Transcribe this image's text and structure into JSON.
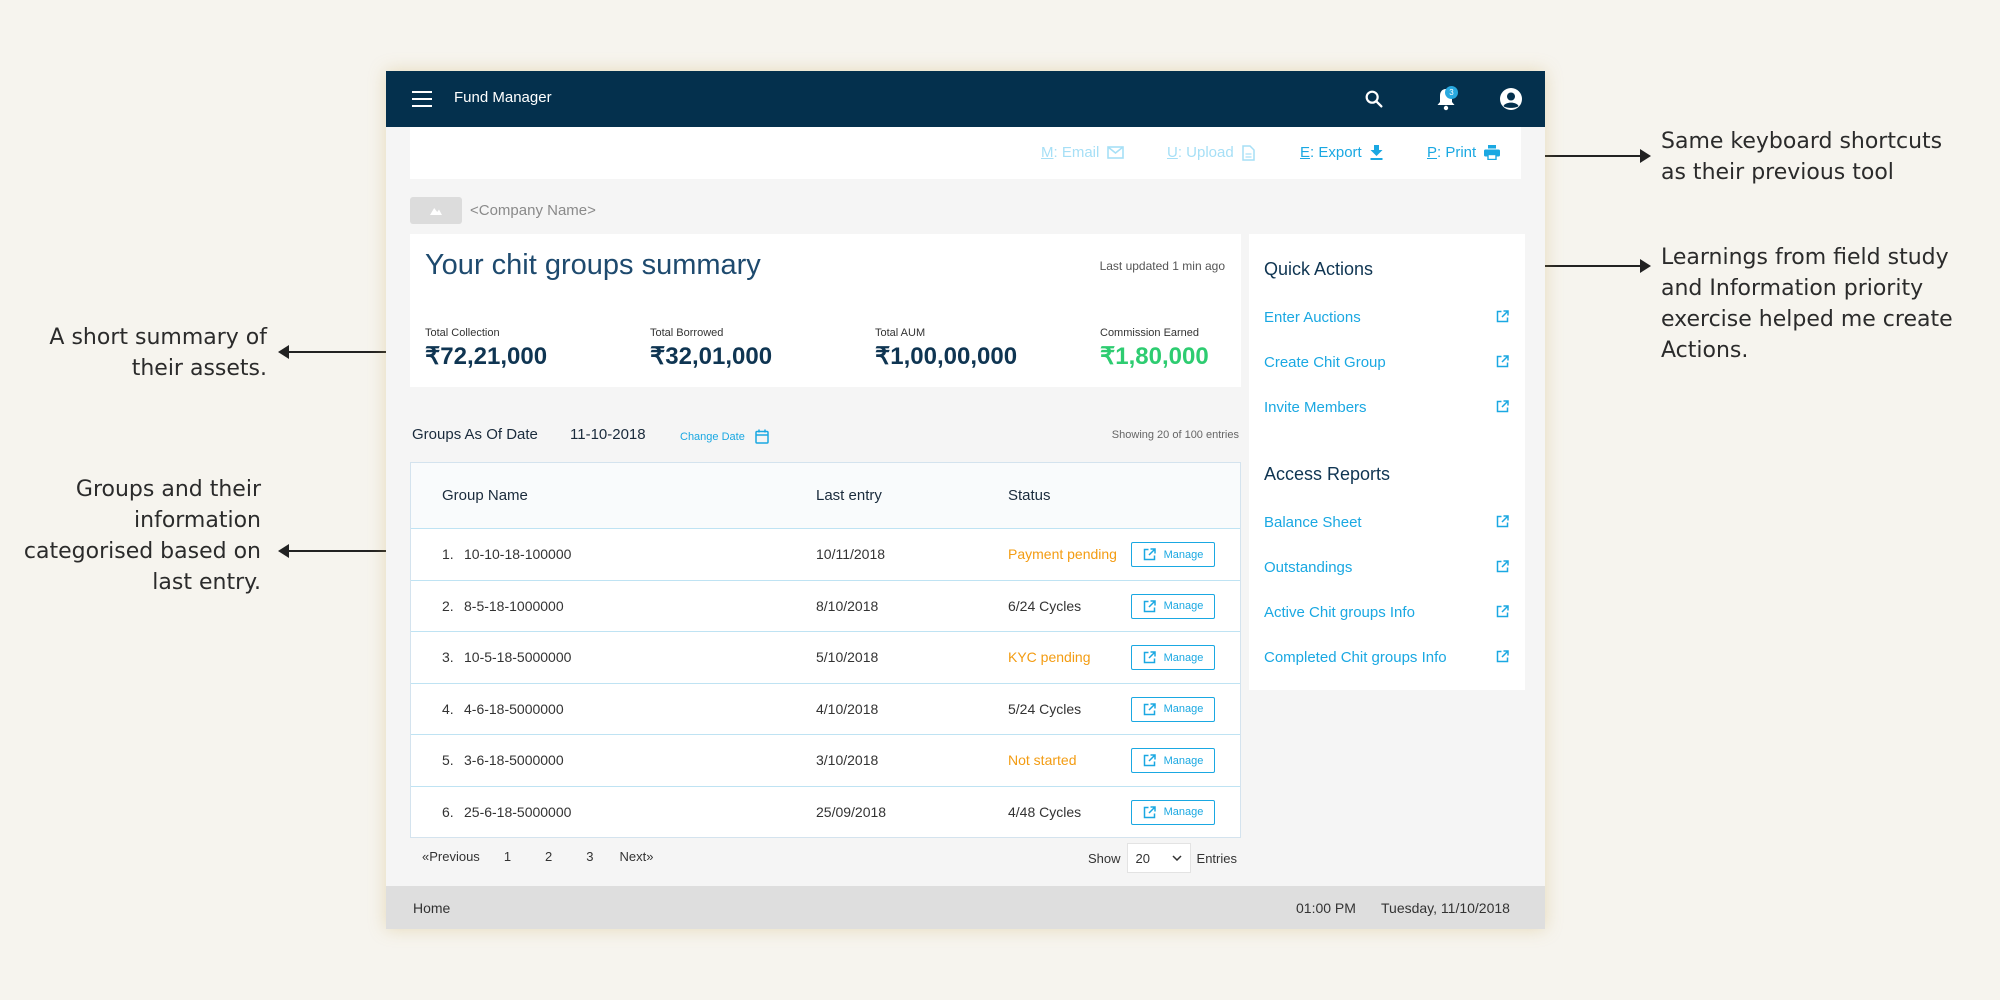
{
  "annotations": {
    "shortcuts": [
      "Same keyboard shortcuts",
      "as their previous tool"
    ],
    "learnings": [
      "Learnings from field study",
      "and Information priority",
      "exercise helped me create",
      "Actions."
    ],
    "summary": [
      "A short summary of",
      "their assets."
    ],
    "groups": [
      "Groups and their",
      "information",
      "categorised based on",
      "last entry."
    ]
  },
  "header": {
    "title": "Fund Manager",
    "notification_count": "3",
    "icons": [
      "menu-icon",
      "search-icon",
      "bell-icon",
      "user-icon"
    ]
  },
  "toolbar": {
    "email": {
      "key": "M",
      "label": ": Email"
    },
    "upload": {
      "key": "U",
      "label": ": Upload"
    },
    "export": {
      "key": "E",
      "label": ": Export"
    },
    "print": {
      "key": "P",
      "label": ": Print"
    }
  },
  "company": {
    "name": "<Company Name>"
  },
  "summary": {
    "title": "Your chit groups summary",
    "last_updated": "Last updated 1 min ago",
    "stats": [
      {
        "label": "Total Collection",
        "value": "₹72,21,000"
      },
      {
        "label": "Total Borrowed",
        "value": "₹32,01,000"
      },
      {
        "label": "Total AUM",
        "value": "₹1,00,00,000"
      },
      {
        "label": "Commission Earned",
        "value": "₹1,80,000"
      }
    ]
  },
  "groups": {
    "title": "Groups As Of Date",
    "date": "11-10-2018",
    "change_date": "Change Date",
    "showing": "Showing 20 of 100 entries",
    "columns": [
      "Group Name",
      "Last entry",
      "Status"
    ],
    "manage_label": "Manage",
    "rows": [
      {
        "num": "1.",
        "name": "10-10-18-100000",
        "last_entry": "10/11/2018",
        "status": "Payment pending"
      },
      {
        "num": "2.",
        "name": "8-5-18-1000000",
        "last_entry": "8/10/2018",
        "status": "6/24 Cycles"
      },
      {
        "num": "3.",
        "name": "10-5-18-5000000",
        "last_entry": "5/10/2018",
        "status": "KYC pending"
      },
      {
        "num": "4.",
        "name": "4-6-18-5000000",
        "last_entry": "4/10/2018",
        "status": "5/24 Cycles"
      },
      {
        "num": "5.",
        "name": "3-6-18-5000000",
        "last_entry": "3/10/2018",
        "status": "Not started"
      },
      {
        "num": "6.",
        "name": "25-6-18-5000000",
        "last_entry": "25/09/2018",
        "status": "4/48 Cycles"
      }
    ]
  },
  "pagination": {
    "previous": "«Previous",
    "pages": [
      "1",
      "2",
      "3"
    ],
    "next": "Next»",
    "show_label": "Show",
    "show_value": "20",
    "entries_label": "Entries"
  },
  "quick_actions": {
    "title": "Quick Actions",
    "links": [
      "Enter Auctions",
      "Create Chit Group",
      "Invite Members"
    ]
  },
  "access_reports": {
    "title": "Access Reports",
    "links": [
      "Balance Sheet",
      "Outstandings",
      "Active Chit groups Info",
      "Completed Chit groups Info"
    ]
  },
  "footer": {
    "home": "Home",
    "time": "01:00 PM",
    "date": "Tuesday, 11/10/2018"
  },
  "colors": {
    "navbar": "#04304d",
    "accent": "#1aa8e2",
    "warning": "#f39c12",
    "positive": "#2ecc71"
  }
}
